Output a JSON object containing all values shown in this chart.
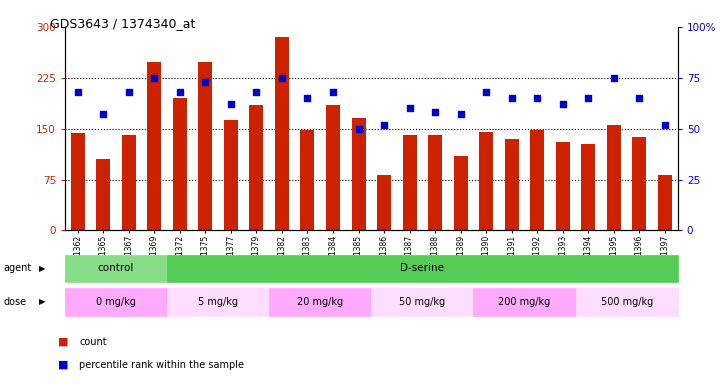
{
  "title": "GDS3643 / 1374340_at",
  "samples": [
    "GSM271362",
    "GSM271365",
    "GSM271367",
    "GSM271369",
    "GSM271372",
    "GSM271375",
    "GSM271377",
    "GSM271379",
    "GSM271382",
    "GSM271383",
    "GSM271384",
    "GSM271385",
    "GSM271386",
    "GSM271387",
    "GSM271388",
    "GSM271389",
    "GSM271390",
    "GSM271391",
    "GSM271392",
    "GSM271393",
    "GSM271394",
    "GSM271395",
    "GSM271396",
    "GSM271397"
  ],
  "counts": [
    143,
    105,
    140,
    248,
    195,
    248,
    163,
    185,
    285,
    148,
    185,
    165,
    82,
    140,
    140,
    110,
    145,
    135,
    148,
    130,
    128,
    155,
    138,
    82
  ],
  "percentiles": [
    68,
    57,
    68,
    75,
    68,
    73,
    62,
    68,
    75,
    65,
    68,
    50,
    52,
    60,
    58,
    57,
    68,
    65,
    65,
    62,
    65,
    75,
    65,
    52
  ],
  "bar_color": "#cc2200",
  "dot_color": "#0000cc",
  "ylim_left": [
    0,
    300
  ],
  "ylim_right": [
    0,
    100
  ],
  "yticks_left": [
    0,
    75,
    150,
    225,
    300
  ],
  "yticks_right": [
    0,
    25,
    50,
    75,
    100
  ],
  "ytick_right_labels": [
    "0",
    "25",
    "50",
    "75",
    "100%"
  ],
  "hlines": [
    75,
    150,
    225
  ],
  "agent_groups": [
    {
      "label": "control",
      "start": 0,
      "end": 4,
      "color": "#88dd88"
    },
    {
      "label": "D-serine",
      "start": 4,
      "end": 24,
      "color": "#55cc55"
    }
  ],
  "dose_groups": [
    {
      "label": "0 mg/kg",
      "start": 0,
      "end": 4,
      "color": "#ffaaff"
    },
    {
      "label": "5 mg/kg",
      "start": 4,
      "end": 8,
      "color": "#ffddff"
    },
    {
      "label": "20 mg/kg",
      "start": 8,
      "end": 12,
      "color": "#ffaaff"
    },
    {
      "label": "50 mg/kg",
      "start": 12,
      "end": 16,
      "color": "#ffddff"
    },
    {
      "label": "200 mg/kg",
      "start": 16,
      "end": 20,
      "color": "#ffaaff"
    },
    {
      "label": "500 mg/kg",
      "start": 20,
      "end": 24,
      "color": "#ffddff"
    }
  ],
  "legend_count_color": "#cc2200",
  "legend_dot_color": "#0000cc"
}
